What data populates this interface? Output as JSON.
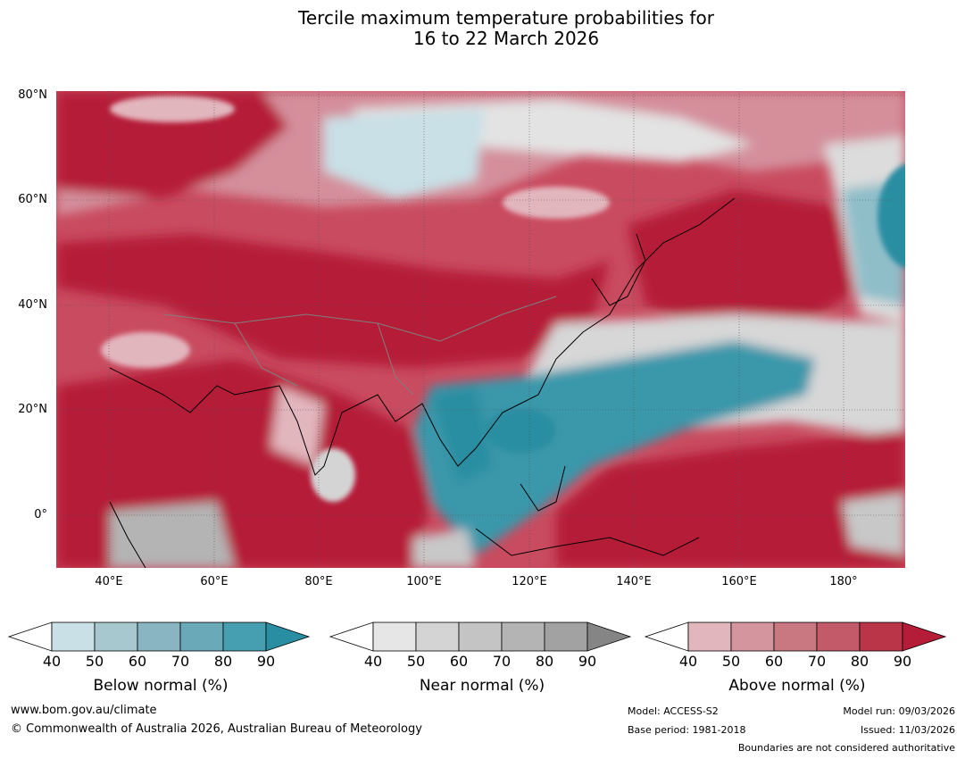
{
  "title": {
    "line1": "Tercile maximum temperature probabilities for",
    "line2": "16 to 22 March 2026"
  },
  "map": {
    "lat_labels": [
      "80°N",
      "60°N",
      "40°N",
      "20°N",
      "0°"
    ],
    "lon_labels": [
      "40°E",
      "60°E",
      "80°E",
      "100°E",
      "120°E",
      "140°E",
      "160°E",
      "180°"
    ],
    "lon_range": [
      30,
      191
    ],
    "lat_range": [
      -10,
      81
    ]
  },
  "legends": [
    {
      "caption": "Below normal (%)",
      "ticks": [
        "40",
        "50",
        "60",
        "70",
        "80",
        "90"
      ],
      "colors": [
        "#c8e0e6",
        "#a7c8cf",
        "#88b5c1",
        "#69a9b8",
        "#459fb0",
        "#2a8ea2"
      ]
    },
    {
      "caption": "Near normal (%)",
      "ticks": [
        "40",
        "50",
        "60",
        "70",
        "80",
        "90"
      ],
      "colors": [
        "#e6e6e6",
        "#d4d4d4",
        "#c4c4c4",
        "#b4b4b4",
        "#a2a2a2",
        "#858585"
      ]
    },
    {
      "caption": "Above normal (%)",
      "ticks": [
        "40",
        "50",
        "60",
        "70",
        "80",
        "90"
      ],
      "colors": [
        "#e2b6bd",
        "#d4959f",
        "#c97882",
        "#c25a69",
        "#bb3549",
        "#b51c38"
      ]
    }
  ],
  "footer": {
    "website": "www.bom.gov.au/climate",
    "copyright": "© Commonwealth of Australia 2026, Australian Bureau of Meteorology",
    "model": "Model: ACCESS-S2",
    "base_period": "Base period: 1981-2018",
    "model_run": "Model run: 09/03/2026",
    "issued": "Issued: 11/03/2026",
    "disclaimer": "Boundaries are not considered authoritative"
  }
}
